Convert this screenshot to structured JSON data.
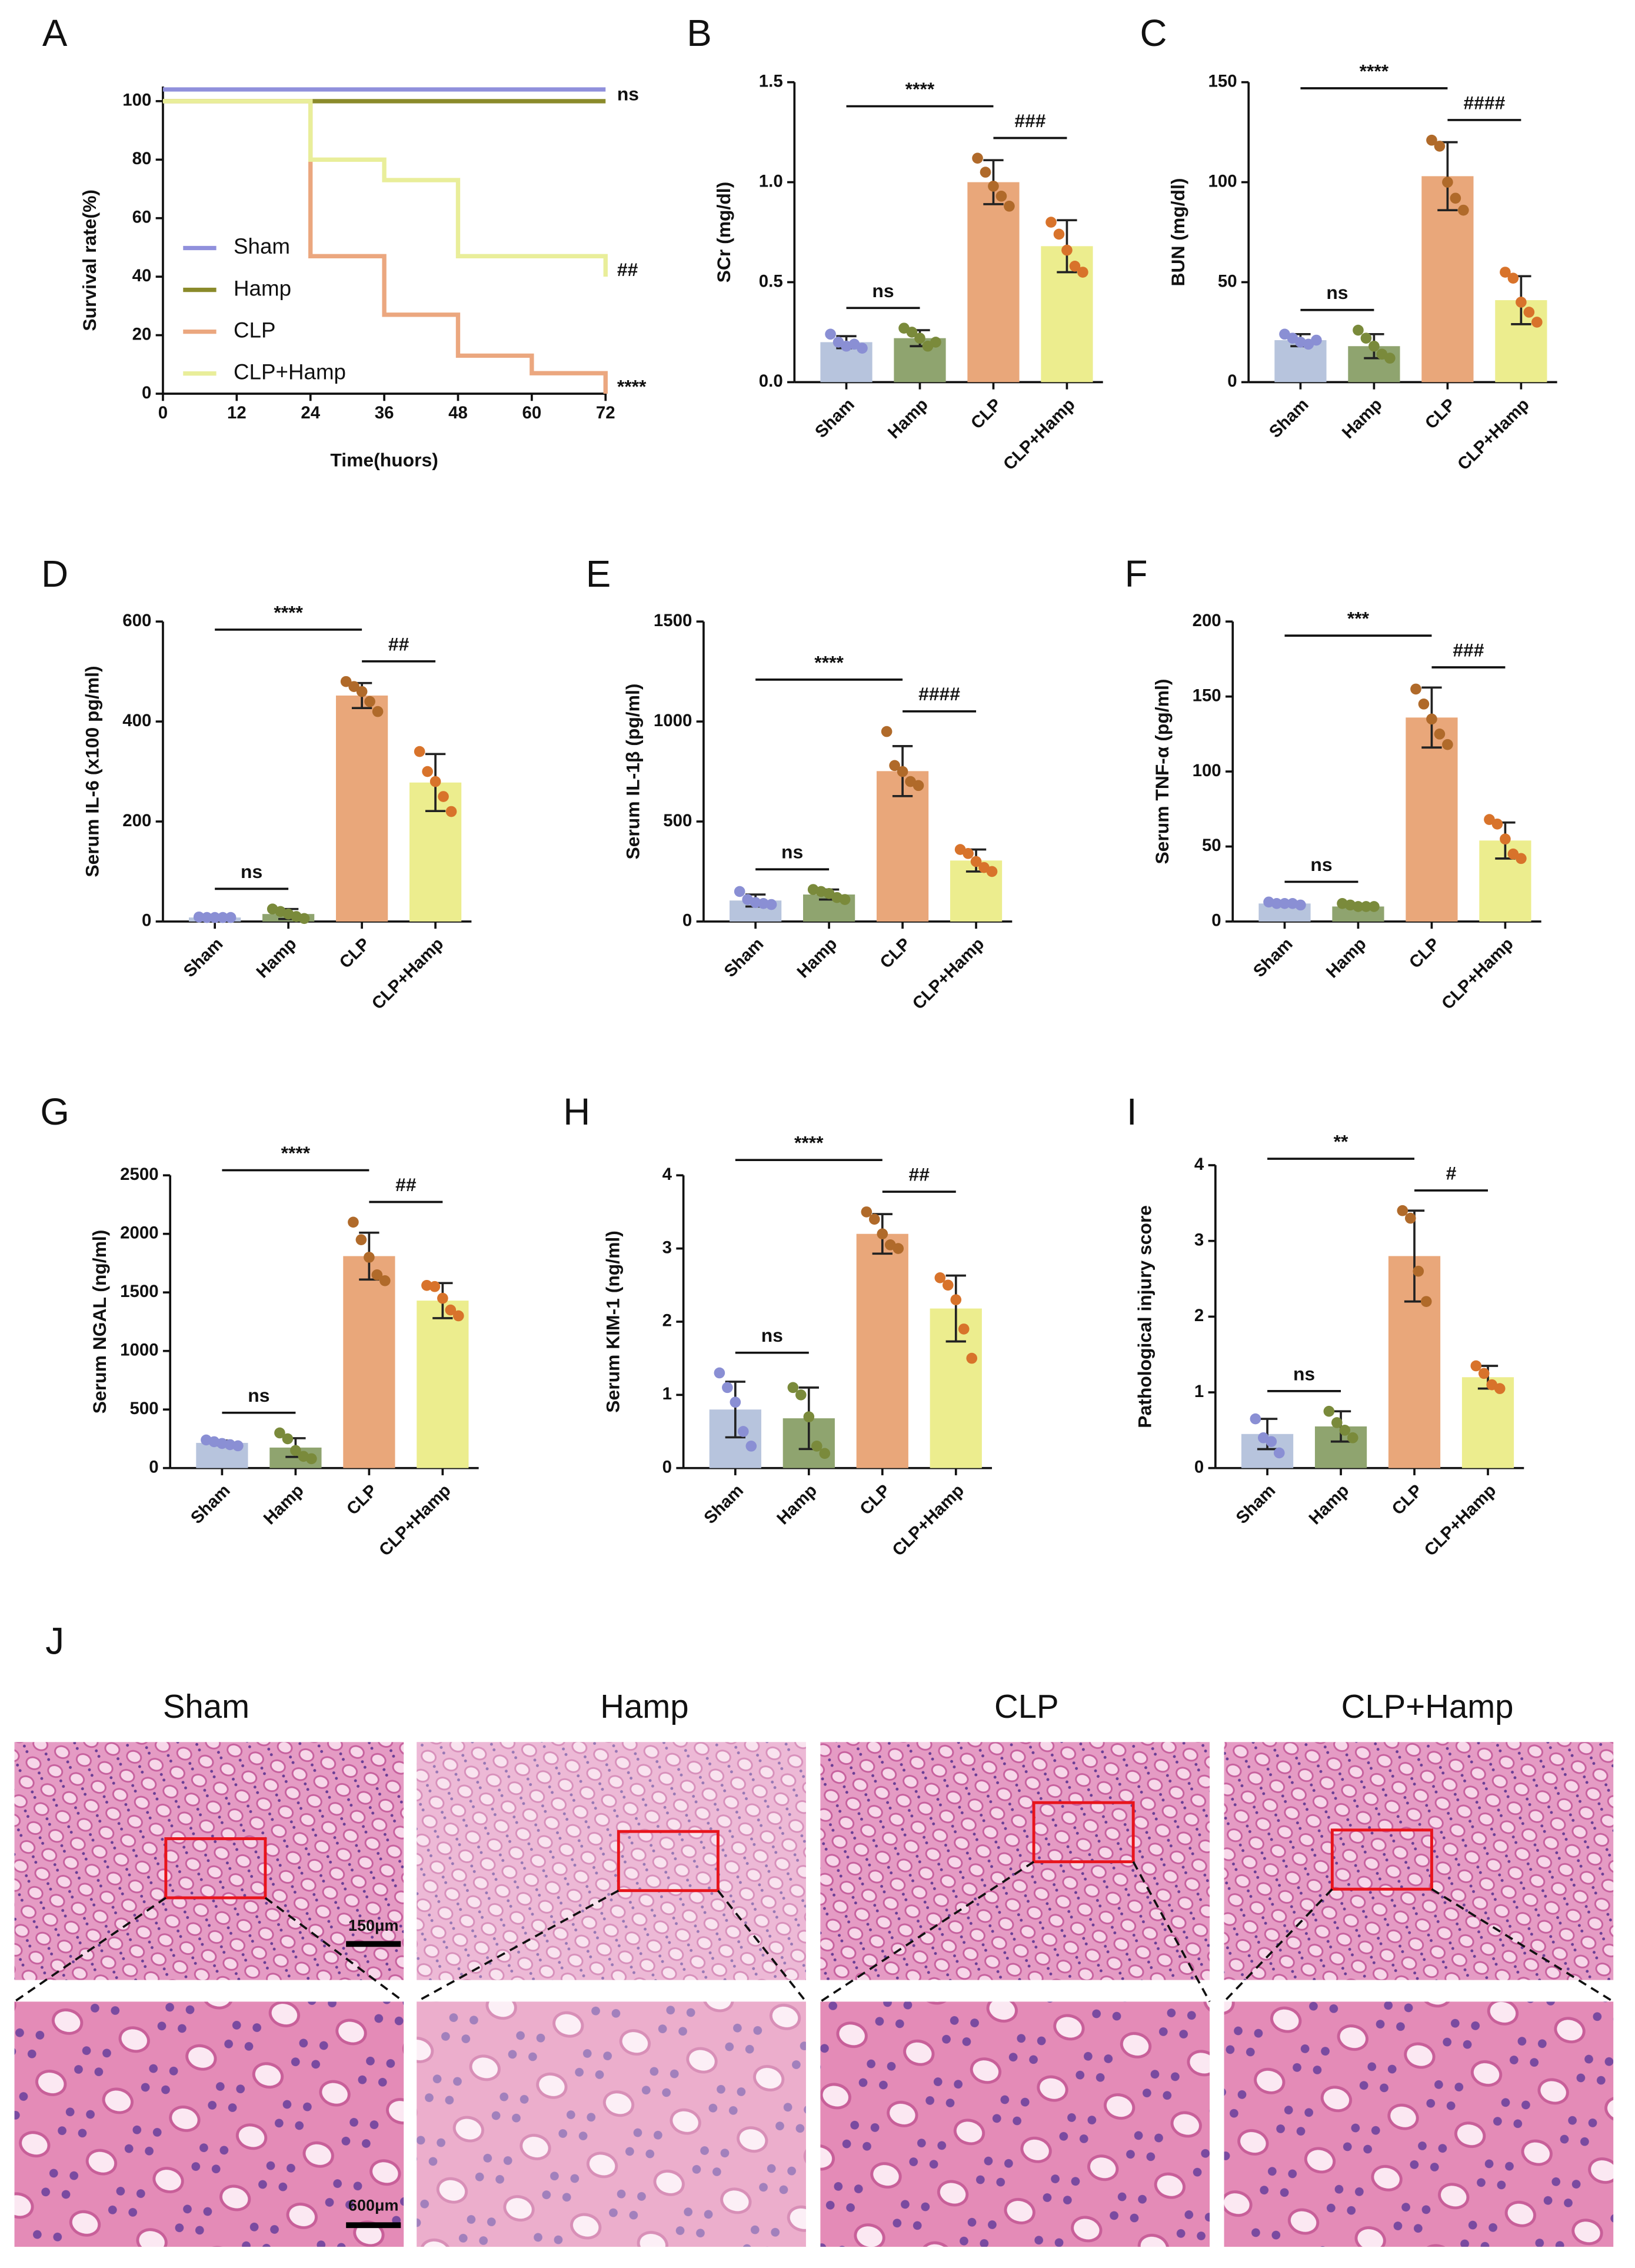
{
  "chart_data": [
    {
      "panel": "A",
      "type": "line",
      "ylabel": "Survival rate(%)",
      "xlabel": "Time(huors)",
      "xlim": [
        0,
        72
      ],
      "xticks": [
        0,
        12,
        24,
        36,
        48,
        60,
        72
      ],
      "ylim": [
        0,
        105
      ],
      "yticks": [
        0,
        20,
        40,
        60,
        80,
        100
      ],
      "legend": "center-left",
      "series": [
        {
          "name": "Sham",
          "color": "#9090dc",
          "x": [
            0,
            72
          ],
          "values": [
            104,
            104
          ]
        },
        {
          "name": "Hamp",
          "color": "#8a8a2a",
          "x": [
            0,
            72
          ],
          "values": [
            100,
            100
          ]
        },
        {
          "name": "CLP",
          "color": "#eba77f",
          "x": [
            0,
            24,
            24,
            36,
            36,
            48,
            48,
            60,
            60,
            72,
            72
          ],
          "values": [
            100,
            100,
            47,
            47,
            27,
            27,
            13,
            13,
            7,
            7,
            0
          ]
        },
        {
          "name": "CLP+Hamp",
          "color": "#e9ee9a",
          "x": [
            0,
            24,
            24,
            36,
            36,
            48,
            48,
            72,
            72
          ],
          "values": [
            100,
            100,
            80,
            80,
            73,
            73,
            47,
            47,
            40
          ]
        }
      ],
      "annotations": [
        {
          "text": "ns",
          "series": 1
        },
        {
          "text": "##",
          "series": 3
        },
        {
          "text": "****",
          "series": 2
        }
      ]
    },
    {
      "panel": "B",
      "type": "bar",
      "ylabel": "SCr (mg/dl)",
      "categories": [
        "Sham",
        "Hamp",
        "CLP",
        "CLP+Hamp"
      ],
      "values": [
        0.2,
        0.22,
        1.0,
        0.68
      ],
      "errors": [
        0.03,
        0.04,
        0.11,
        0.13
      ],
      "points": [
        [
          0.24,
          0.2,
          0.18,
          0.19,
          0.17
        ],
        [
          0.27,
          0.25,
          0.22,
          0.18,
          0.2
        ],
        [
          1.12,
          1.05,
          0.98,
          0.93,
          0.88
        ],
        [
          0.8,
          0.74,
          0.66,
          0.58,
          0.55
        ]
      ],
      "colors": [
        "#b7c4dd",
        "#8fa46f",
        "#e9a77a",
        "#eced8e"
      ],
      "point_colors": [
        "#8a8fd4",
        "#7a8a3b",
        "#b06a2a",
        "#d8732b"
      ],
      "ylim": [
        0,
        1.5
      ],
      "yticks": [
        {
          "value": 0,
          "label": "0.0"
        },
        0.5,
        {
          "value": 1,
          "label": "1.0"
        },
        1.5
      ],
      "annotations": [
        {
          "text": "ns",
          "between": [
            0,
            1
          ]
        },
        {
          "text": "###",
          "between": [
            2,
            3
          ]
        },
        {
          "text": "****",
          "between": [
            0,
            2
          ]
        }
      ]
    },
    {
      "panel": "C",
      "type": "bar",
      "ylabel": "BUN (mg/dl)",
      "categories": [
        "Sham",
        "Hamp",
        "CLP",
        "CLP+Hamp"
      ],
      "values": [
        21,
        18,
        103,
        41
      ],
      "errors": [
        3,
        6,
        17,
        12
      ],
      "points": [
        [
          24,
          22,
          20,
          19,
          21
        ],
        [
          26,
          22,
          18,
          14,
          12
        ],
        [
          121,
          118,
          100,
          92,
          86
        ],
        [
          55,
          52,
          40,
          35,
          30
        ]
      ],
      "colors": [
        "#b7c4dd",
        "#8fa46f",
        "#e9a77a",
        "#eced8e"
      ],
      "point_colors": [
        "#8a8fd4",
        "#7a8a3b",
        "#b06a2a",
        "#d8732b"
      ],
      "ylim": [
        0,
        150
      ],
      "yticks": [
        0,
        50,
        100,
        150
      ],
      "annotations": [
        {
          "text": "ns",
          "between": [
            0,
            1
          ]
        },
        {
          "text": "####",
          "between": [
            2,
            3
          ]
        },
        {
          "text": "****",
          "between": [
            0,
            2
          ]
        }
      ]
    },
    {
      "panel": "D",
      "type": "bar",
      "ylabel": "Serum IL-6 (x100 pg/ml)",
      "categories": [
        "Sham",
        "Hamp",
        "CLP",
        "CLP+Hamp"
      ],
      "values": [
        8,
        15,
        452,
        278
      ],
      "errors": [
        2,
        10,
        25,
        57
      ],
      "points": [
        [
          9,
          8,
          8,
          8,
          8
        ],
        [
          25,
          20,
          15,
          10,
          6
        ],
        [
          480,
          470,
          460,
          440,
          420
        ],
        [
          340,
          300,
          280,
          250,
          220
        ]
      ],
      "colors": [
        "#b7c4dd",
        "#8fa46f",
        "#e9a77a",
        "#eced8e"
      ],
      "point_colors": [
        "#8a8fd4",
        "#7a8a3b",
        "#b06a2a",
        "#d8732b"
      ],
      "ylim": [
        0,
        600
      ],
      "yticks": [
        0,
        200,
        400,
        600
      ],
      "annotations": [
        {
          "text": "ns",
          "between": [
            0,
            1
          ]
        },
        {
          "text": "##",
          "between": [
            2,
            3
          ]
        },
        {
          "text": "****",
          "between": [
            0,
            2
          ]
        }
      ]
    },
    {
      "panel": "E",
      "type": "bar",
      "ylabel": "Serum IL-1β (pg/ml)",
      "categories": [
        "Sham",
        "Hamp",
        "CLP",
        "CLP+Hamp"
      ],
      "values": [
        105,
        135,
        752,
        305
      ],
      "errors": [
        30,
        25,
        125,
        55
      ],
      "points": [
        [
          150,
          110,
          95,
          90,
          85
        ],
        [
          160,
          150,
          140,
          120,
          110
        ],
        [
          950,
          780,
          750,
          700,
          680
        ],
        [
          360,
          340,
          300,
          270,
          250
        ]
      ],
      "colors": [
        "#b7c4dd",
        "#8fa46f",
        "#e9a77a",
        "#eced8e"
      ],
      "point_colors": [
        "#8a8fd4",
        "#7a8a3b",
        "#b06a2a",
        "#d8732b"
      ],
      "ylim": [
        0,
        1500
      ],
      "yticks": [
        0,
        500,
        1000,
        1500
      ],
      "annotations": [
        {
          "text": "ns",
          "between": [
            0,
            1
          ]
        },
        {
          "text": "####",
          "between": [
            2,
            3
          ]
        },
        {
          "text": "****",
          "between": [
            0,
            2
          ]
        }
      ]
    },
    {
      "panel": "F",
      "type": "bar",
      "ylabel": "Serum TNF-α (pg/ml)",
      "categories": [
        "Sham",
        "Hamp",
        "CLP",
        "CLP+Hamp"
      ],
      "values": [
        12,
        10,
        136,
        54
      ],
      "errors": [
        1,
        1,
        20,
        12
      ],
      "points": [
        [
          13,
          12,
          12,
          12,
          11
        ],
        [
          12,
          11,
          10,
          10,
          10
        ],
        [
          155,
          145,
          135,
          125,
          118
        ],
        [
          68,
          65,
          55,
          45,
          42
        ]
      ],
      "colors": [
        "#b7c4dd",
        "#8fa46f",
        "#e9a77a",
        "#eced8e"
      ],
      "point_colors": [
        "#8a8fd4",
        "#7a8a3b",
        "#b06a2a",
        "#d8732b"
      ],
      "ylim": [
        0,
        200
      ],
      "yticks": [
        0,
        50,
        100,
        150,
        200
      ],
      "annotations": [
        {
          "text": "ns",
          "between": [
            0,
            1
          ]
        },
        {
          "text": "###",
          "between": [
            2,
            3
          ]
        },
        {
          "text": "***",
          "between": [
            0,
            2
          ]
        }
      ]
    },
    {
      "panel": "G",
      "type": "bar",
      "ylabel": "Serum NGAL (ng/ml)",
      "categories": [
        "Sham",
        "Hamp",
        "CLP",
        "CLP+Hamp"
      ],
      "values": [
        215,
        175,
        1810,
        1430
      ],
      "errors": [
        20,
        80,
        200,
        150
      ],
      "points": [
        [
          240,
          225,
          210,
          200,
          190
        ],
        [
          300,
          250,
          150,
          100,
          80
        ],
        [
          2100,
          1950,
          1800,
          1650,
          1600
        ],
        [
          1560,
          1550,
          1450,
          1350,
          1300
        ]
      ],
      "colors": [
        "#b7c4dd",
        "#8fa46f",
        "#e9a77a",
        "#eced8e"
      ],
      "point_colors": [
        "#8a8fd4",
        "#7a8a3b",
        "#b06a2a",
        "#d8732b"
      ],
      "ylim": [
        0,
        2500
      ],
      "yticks": [
        0,
        500,
        1000,
        1500,
        2000,
        2500
      ],
      "annotations": [
        {
          "text": "ns",
          "between": [
            0,
            1
          ]
        },
        {
          "text": "##",
          "between": [
            2,
            3
          ]
        },
        {
          "text": "****",
          "between": [
            0,
            2
          ]
        }
      ]
    },
    {
      "panel": "H",
      "type": "bar",
      "ylabel": "Serum KIM-1 (ng/ml)",
      "categories": [
        "Sham",
        "Hamp",
        "CLP",
        "CLP+Hamp"
      ],
      "values": [
        0.8,
        0.68,
        3.2,
        2.18
      ],
      "errors": [
        0.38,
        0.42,
        0.27,
        0.45
      ],
      "points": [
        [
          1.3,
          1.1,
          0.9,
          0.5,
          0.3
        ],
        [
          1.1,
          1.0,
          0.7,
          0.3,
          0.2
        ],
        [
          3.5,
          3.4,
          3.2,
          3.05,
          3.0
        ],
        [
          2.6,
          2.5,
          2.3,
          1.9,
          1.5
        ]
      ],
      "colors": [
        "#b7c4dd",
        "#8fa46f",
        "#e9a77a",
        "#eced8e"
      ],
      "point_colors": [
        "#8a8fd4",
        "#7a8a3b",
        "#b06a2a",
        "#d8732b"
      ],
      "ylim": [
        0,
        4
      ],
      "yticks": [
        0,
        1,
        2,
        3,
        4
      ],
      "annotations": [
        {
          "text": "ns",
          "between": [
            0,
            1
          ]
        },
        {
          "text": "##",
          "between": [
            2,
            3
          ]
        },
        {
          "text": "****",
          "between": [
            0,
            2
          ]
        }
      ]
    },
    {
      "panel": "I",
      "type": "bar",
      "ylabel": "Pathological injury score",
      "categories": [
        "Sham",
        "Hamp",
        "CLP",
        "CLP+Hamp"
      ],
      "values": [
        0.45,
        0.55,
        2.8,
        1.2
      ],
      "errors": [
        0.2,
        0.2,
        0.6,
        0.15
      ],
      "points": [
        [
          0.65,
          0.4,
          0.35,
          0.2
        ],
        [
          0.75,
          0.6,
          0.5,
          0.4
        ],
        [
          3.4,
          3.3,
          2.6,
          2.2
        ],
        [
          1.35,
          1.25,
          1.1,
          1.05
        ]
      ],
      "colors": [
        "#b7c4dd",
        "#8fa46f",
        "#e9a77a",
        "#eced8e"
      ],
      "point_colors": [
        "#8a8fd4",
        "#7a8a3b",
        "#b06a2a",
        "#d8732b"
      ],
      "ylim": [
        0,
        4
      ],
      "yticks": [
        0,
        1,
        2,
        3,
        4
      ],
      "annotations": [
        {
          "text": "ns",
          "between": [
            0,
            1
          ]
        },
        {
          "text": "#",
          "between": [
            2,
            3
          ]
        },
        {
          "text": "**",
          "between": [
            0,
            2
          ]
        }
      ]
    }
  ],
  "histology": {
    "label": "J",
    "groups": [
      "Sham",
      "Hamp",
      "CLP",
      "CLP+Hamp"
    ],
    "scale_bars": [
      "150μm",
      "600μm"
    ]
  }
}
